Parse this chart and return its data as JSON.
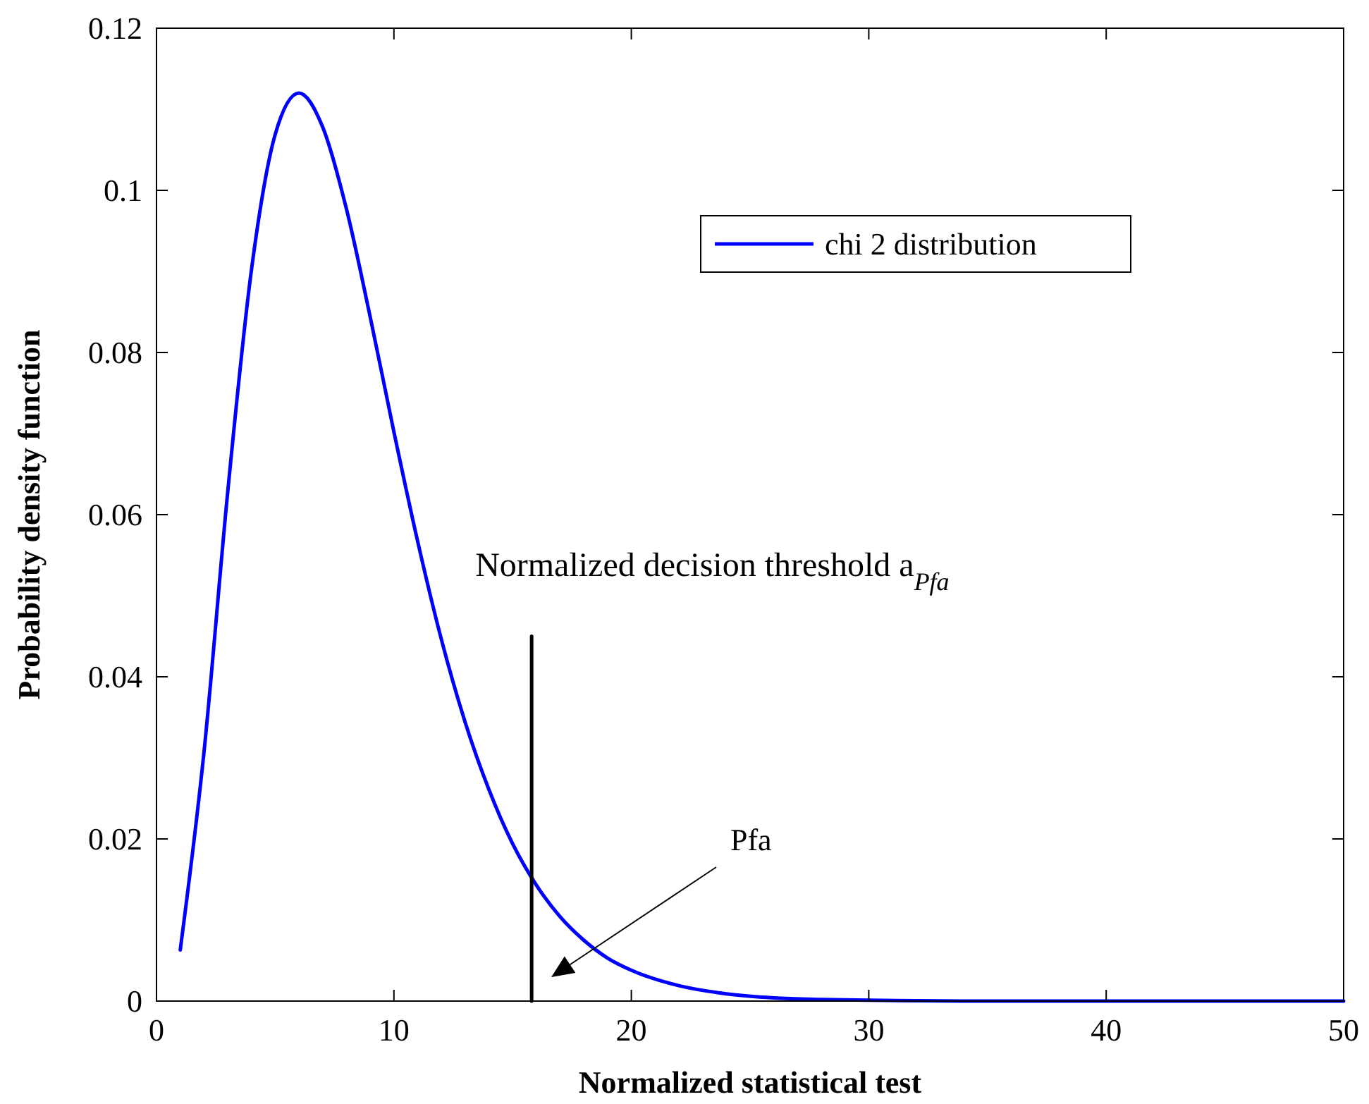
{
  "chart_data": {
    "type": "line",
    "xlabel": "Normalized statistical test",
    "ylabel": "Probability density function",
    "xlim": [
      0,
      50
    ],
    "ylim": [
      0,
      0.12
    ],
    "xticks": [
      0,
      10,
      20,
      30,
      40,
      50
    ],
    "yticks": [
      0,
      0.02,
      0.04,
      0.06,
      0.08,
      {
        "value": 0.1,
        "label": "0.1"
      },
      0.12
    ],
    "grid": false,
    "legend": "top right",
    "line_style": "solid",
    "marker": "none",
    "series": [
      {
        "name": "chi 2 distribution",
        "color": "#0000ff",
        "x": [
          1,
          2,
          3,
          4,
          5,
          6,
          7,
          8,
          9,
          10,
          11,
          12,
          13,
          14,
          15,
          16,
          17,
          18,
          19,
          20,
          22,
          24,
          26,
          28,
          30,
          35,
          40,
          45,
          50
        ],
        "values": [
          0.0063,
          0.0307,
          0.0628,
          0.0902,
          0.1069,
          0.112,
          0.1078,
          0.0977,
          0.0844,
          0.0702,
          0.0567,
          0.0446,
          0.0344,
          0.0261,
          0.0194,
          0.0143,
          0.0104,
          0.0075,
          0.0053,
          0.0038,
          0.0019,
          0.0009,
          0.0004,
          0.0002,
          0.0001,
          0,
          0,
          0,
          0
        ]
      },
      {
        "color": "#000000",
        "x": [
          15.8,
          15.8
        ],
        "values": [
          0,
          0.045
        ]
      }
    ],
    "annotations": [
      {
        "text": "Normalized decision threshold a$_{Pfa}$",
        "x": 15.8,
        "y": 0.045
      },
      "Pfa"
    ]
  }
}
